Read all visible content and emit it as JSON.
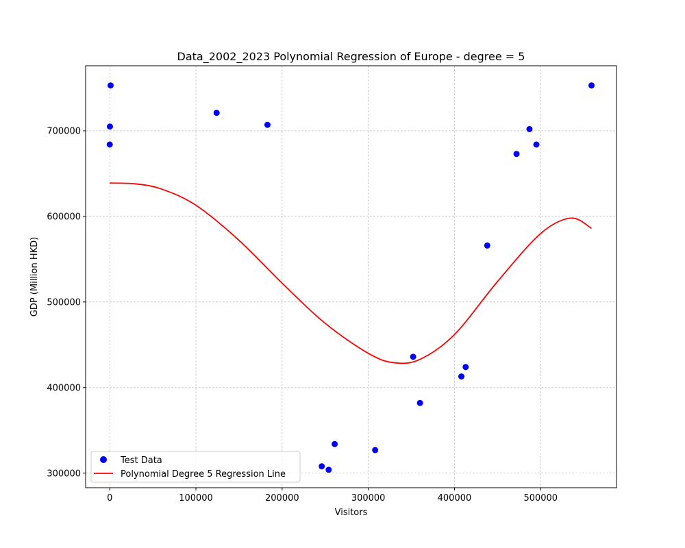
{
  "chart_data": {
    "type": "scatter",
    "title": "Data_2002_2023 Polynomial Regression of Europe - degree = 5",
    "xlabel": "Visitors",
    "ylabel": "GDP (Million HKD)",
    "xlim": [
      -28000,
      588000
    ],
    "ylim": [
      283000,
      776000
    ],
    "x_ticks": [
      0,
      100000,
      200000,
      300000,
      400000,
      500000
    ],
    "y_ticks": [
      300000,
      400000,
      500000,
      600000,
      700000
    ],
    "grid": true,
    "legend_position": "lower left",
    "series": [
      {
        "name": "Test Data",
        "kind": "scatter",
        "color": "#0000ff",
        "points": [
          [
            1000,
            753000
          ],
          [
            200,
            705000
          ],
          [
            0,
            684000
          ],
          [
            124000,
            721000
          ],
          [
            183000,
            707000
          ],
          [
            246000,
            308000
          ],
          [
            254000,
            304000
          ],
          [
            261000,
            334000
          ],
          [
            308000,
            327000
          ],
          [
            352000,
            436000
          ],
          [
            360000,
            382000
          ],
          [
            408000,
            413000
          ],
          [
            413000,
            424000
          ],
          [
            438000,
            566000
          ],
          [
            472000,
            673000
          ],
          [
            487000,
            702000
          ],
          [
            495000,
            684000
          ],
          [
            559000,
            753000
          ]
        ]
      },
      {
        "name": "Polynomial Degree 5 Regression Line",
        "kind": "line",
        "color": "#ff0000",
        "points": [
          [
            0,
            639000
          ],
          [
            30000,
            638000
          ],
          [
            60000,
            632000
          ],
          [
            100000,
            613000
          ],
          [
            150000,
            572000
          ],
          [
            200000,
            522000
          ],
          [
            250000,
            475000
          ],
          [
            300000,
            440000
          ],
          [
            330000,
            429000
          ],
          [
            360000,
            433000
          ],
          [
            400000,
            462000
          ],
          [
            450000,
            524000
          ],
          [
            500000,
            580000
          ],
          [
            535000,
            598000
          ],
          [
            559000,
            586000
          ]
        ]
      }
    ]
  }
}
